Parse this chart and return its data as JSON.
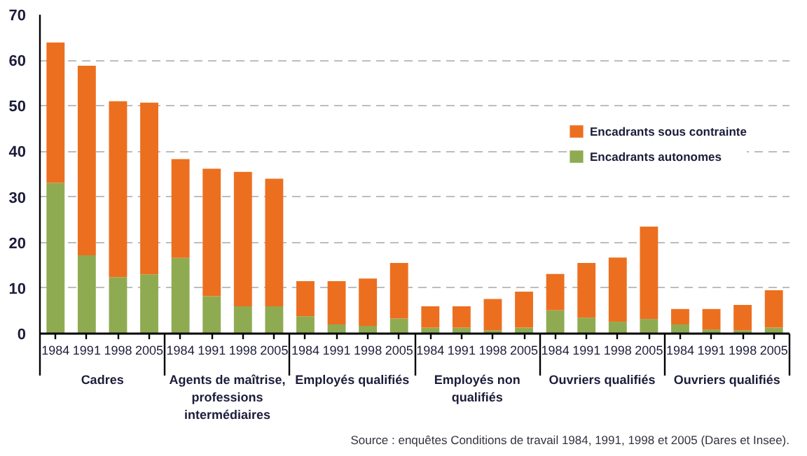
{
  "chart_data": {
    "type": "bar",
    "stacked": true,
    "categories": [
      "1984",
      "1991",
      "1998",
      "2005",
      "1984",
      "1991",
      "1998",
      "2005",
      "1984",
      "1991",
      "1998",
      "2005",
      "1984",
      "1991",
      "1998",
      "2005",
      "1984",
      "1991",
      "1998",
      "2005",
      "1984",
      "1991",
      "1998",
      "2005"
    ],
    "series": [
      {
        "name": "Encadrants autonomes",
        "color": "#8fab52",
        "values": [
          33.1,
          17.2,
          12.4,
          13.0,
          16.6,
          8.2,
          6.0,
          6.0,
          3.8,
          2.0,
          1.7,
          3.3,
          1.3,
          1.3,
          0.7,
          1.3,
          5.1,
          3.5,
          2.6,
          3.2,
          2.0,
          0.9,
          0.7,
          1.3
        ]
      },
      {
        "name": "Encadrants sous contrainte",
        "color": "#ec6f1f",
        "values": [
          30.8,
          41.6,
          38.6,
          37.7,
          21.7,
          28.0,
          29.5,
          28.0,
          7.7,
          9.5,
          10.4,
          12.2,
          4.7,
          4.7,
          6.9,
          7.9,
          8.0,
          12.0,
          14.1,
          20.3,
          3.4,
          4.5,
          5.6,
          8.2
        ]
      }
    ],
    "ylim": [
      0,
      70
    ],
    "yticks": [
      0,
      10,
      20,
      30,
      40,
      50,
      60,
      70
    ],
    "grid": "y",
    "legend": "top right",
    "annotations": [
      "Cadres",
      "Agents de maîtrise, professions intermédiaires",
      "Employés qualifiés",
      "Employés non qualifiés",
      "Ouvriers qualifiés",
      "Ouvriers qualifiés",
      "Source : enquêtes Conditions de travail 1984, 1991, 1998 et 2005 (Dares et Insee)."
    ]
  }
}
